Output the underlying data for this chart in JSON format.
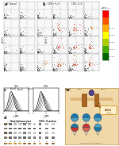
{
  "bg": "#ffffff",
  "dot_bg": "#f8f8f8",
  "dot_color": "#333333",
  "dot_color_red": "#cc2200",
  "dot_color_orange": "#dd6600",
  "cb_colors": [
    "#006600",
    "#44aa00",
    "#aacc00",
    "#ffff00",
    "#ffaa00",
    "#ff5500",
    "#ff0000"
  ],
  "cb_labels": [
    "Distinct\nmedian low",
    "P1 clone",
    "P2 clone",
    "P3 clone",
    "P4 clone",
    "P5 clone"
  ],
  "arrow_fill": "#cccccc",
  "line_colors": [
    "#111111",
    "#333333",
    "#555555",
    "#888888",
    "#aaaaaa",
    "#cccccc"
  ],
  "wb_gray_light": "#cccccc",
  "wb_gray_dark": "#888888",
  "wb_gray_med": "#aaaaaa",
  "wt_bar_color": "#cc8800",
  "ko_bar_color": "#884400",
  "schematic_bg": "#f0d8a8",
  "receptor_color": "#885522",
  "teal1": "#2277aa",
  "teal2": "#44aacc",
  "red1": "#cc3333",
  "red2": "#dd6655",
  "purple": "#553388",
  "blue_dark": "#223366",
  "panel_a_rows": 4,
  "panel_a_cols": 2,
  "panel_b_rows": 4,
  "panel_b_cols": 4,
  "n_line_curves": 6,
  "n_wb_rows_total": 4,
  "n_wb_cols_total": 7,
  "n_wb_cols_cd8": 3,
  "conc_total": [
    "1.0",
    "1.4",
    "2.0",
    "4.0",
    "8.0",
    "10",
    "20"
  ],
  "conc_cd8": [
    "1.0",
    "1.5",
    "2.5"
  ],
  "conc_bar_colors_total": [
    "#cc8800",
    "#cc8800",
    "#cc8800",
    "#cc8800",
    "#884400",
    "#884400",
    "#884400"
  ],
  "conc_bar_colors_cd8": [
    "#cc8800",
    "#884400",
    "#884400"
  ]
}
